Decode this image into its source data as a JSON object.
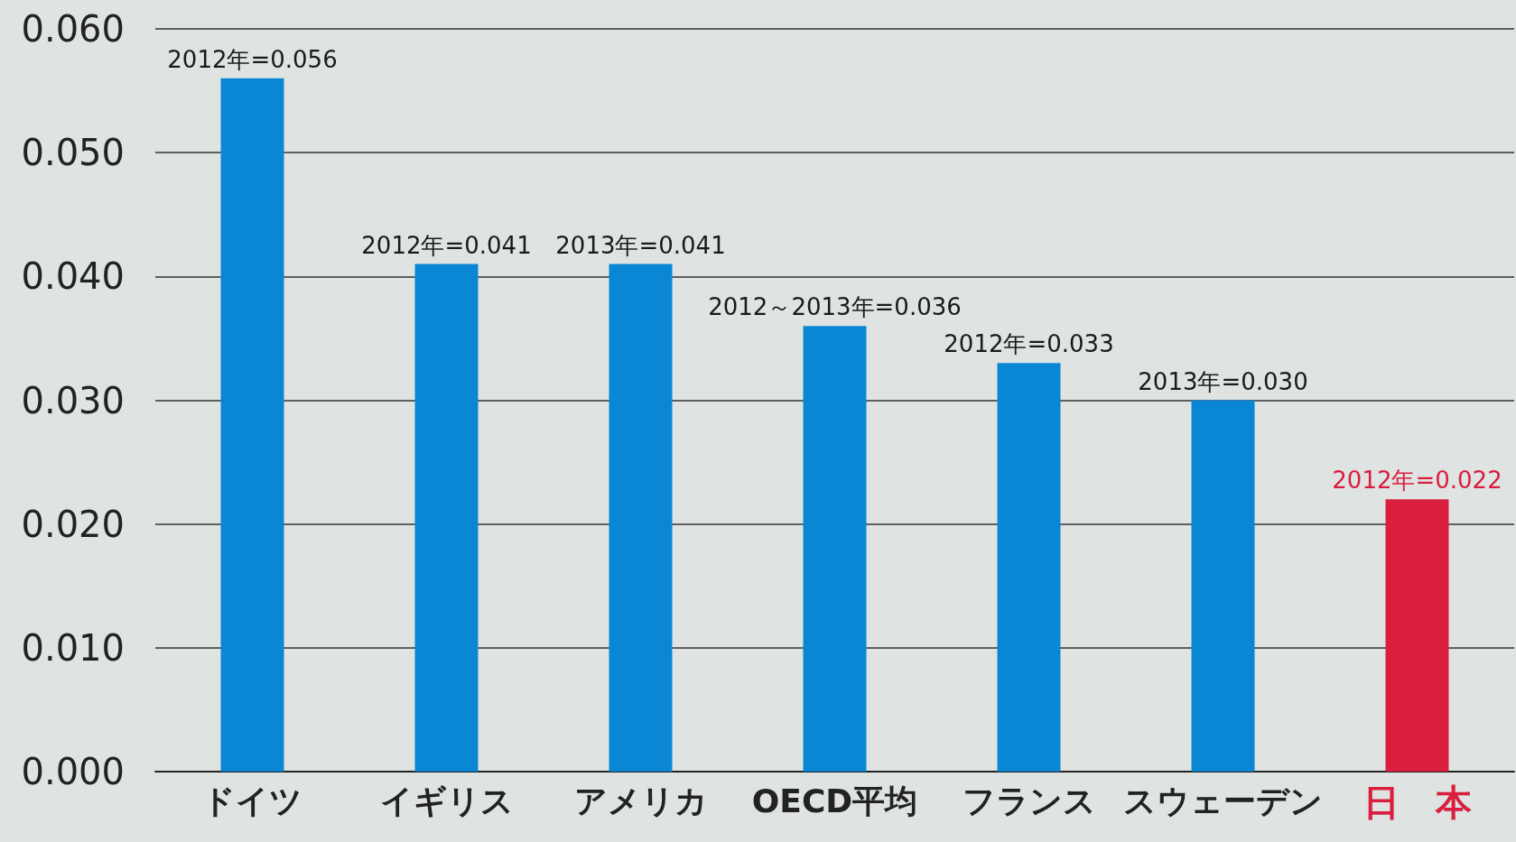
{
  "chart_data": {
    "type": "bar",
    "categories": [
      "ドイツ",
      "イギリス",
      "アメリカ",
      "OECD平均",
      "フランス",
      "スウェーデン",
      "日　本"
    ],
    "values": [
      0.056,
      0.041,
      0.041,
      0.036,
      0.033,
      0.03,
      0.022
    ],
    "colors": [
      "#0a87d4",
      "#0a87d4",
      "#0a87d4",
      "#0a87d4",
      "#0a87d4",
      "#0a87d4",
      "#d91e3f"
    ],
    "value_labels": [
      "2012年=0.056",
      "2012年=0.041",
      "2013年=0.041",
      "2012～2013年=0.036",
      "2012年=0.033",
      "2013年=0.030",
      "2012年=0.022"
    ],
    "ylim": [
      0,
      0.06
    ],
    "yticks": [
      {
        "value": 0,
        "label": "0.000"
      },
      {
        "value": 0.01,
        "label": "0.010"
      },
      {
        "value": 0.02,
        "label": "0.020"
      },
      {
        "value": 0.03,
        "label": "0.030"
      },
      {
        "value": 0.04,
        "label": "0.040"
      },
      {
        "value": 0.05,
        "label": "0.050"
      },
      {
        "value": 0.06,
        "label": "0.060"
      }
    ],
    "grid": "y"
  }
}
